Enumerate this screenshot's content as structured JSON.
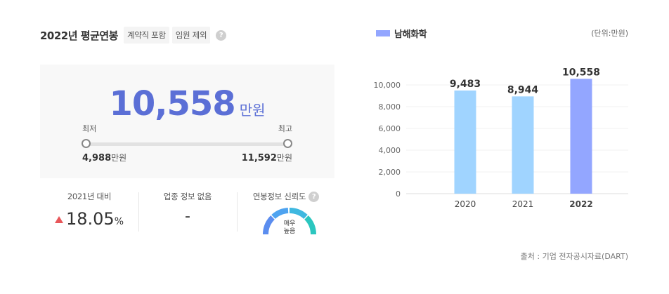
{
  "header": {
    "title": "2022년 평균연봉",
    "tags": [
      "계약직 포함",
      "임원 제외"
    ],
    "help_icon": "?"
  },
  "salary": {
    "value": "10,558",
    "unit": "만원",
    "min_label": "최저",
    "max_label": "최고",
    "min_value": "4,988",
    "min_unit": "만원",
    "max_value": "11,592",
    "max_unit": "만원"
  },
  "stats": {
    "yoy_label": "2021년 대비",
    "yoy_value": "18.05",
    "yoy_unit": "%",
    "industry_label": "업종 정보 없음",
    "industry_value": "-",
    "reliability_label": "연봉정보 신뢰도",
    "reliability_value": "매우 높음",
    "reliability_line1": "매우",
    "reliability_line2": "높음"
  },
  "colors": {
    "accent": "#5b6fd6",
    "bar_past": "#a0d4ff",
    "bar_current": "#93a6ff",
    "up": "#e8575a"
  },
  "legend": {
    "name": "남해화학"
  },
  "unit_note": "(단위:만원)",
  "source": "출처 : 기업 전자공시자료(DART)",
  "chart_data": {
    "type": "bar",
    "categories": [
      "2020",
      "2021",
      "2022"
    ],
    "values": [
      9483,
      8944,
      10558
    ],
    "value_labels": [
      "9,483",
      "8,944",
      "10,558"
    ],
    "series": [
      {
        "name": "남해화학",
        "values": [
          9483,
          8944,
          10558
        ]
      }
    ],
    "highlight_index": 2,
    "ylim": [
      0,
      10000
    ],
    "yticks": [
      0,
      2000,
      4000,
      6000,
      8000,
      10000
    ],
    "ytick_labels": [
      "0",
      "2,000",
      "4,000",
      "6,000",
      "8,000",
      "10,000"
    ],
    "grid": true,
    "legend_position": "top-left",
    "xlabel": "",
    "ylabel": ""
  }
}
